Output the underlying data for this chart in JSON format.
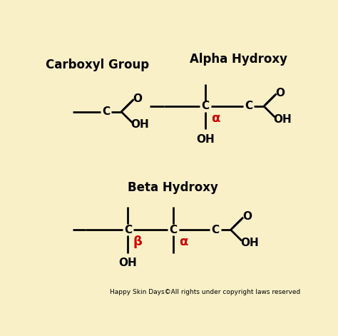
{
  "bg_color": "#FAF0C8",
  "red_color": "#CC0000",
  "black_color": "#000000",
  "footer_text": "Happy Skin Days©All rights under copyright laws reserved",
  "carboxyl_title": "Carboxyl Group",
  "alpha_title": "Alpha Hydroxy",
  "beta_title": "Beta Hydroxy",
  "lw": 2.0,
  "font_size_atom": 11,
  "font_size_title": 12,
  "font_size_greek": 13,
  "font_size_footer": 6.5
}
